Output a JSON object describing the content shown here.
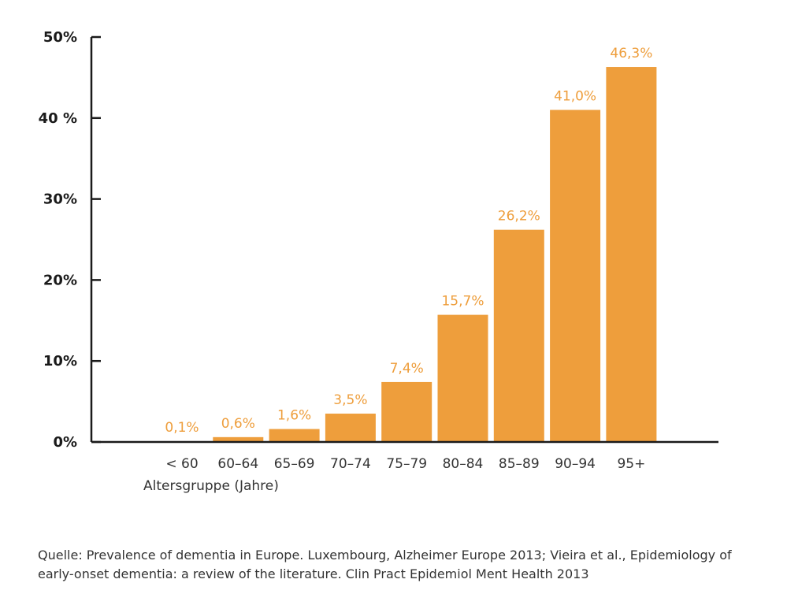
{
  "chart_data": {
    "type": "bar",
    "categories": [
      "< 60",
      "60–64",
      "65–69",
      "70–74",
      "75–79",
      "80–84",
      "85–89",
      "90–94",
      "95+"
    ],
    "values": [
      0.1,
      0.6,
      1.6,
      3.5,
      7.4,
      15.7,
      26.2,
      41.0,
      46.3
    ],
    "value_labels": [
      "0,1%",
      "0,6%",
      "1,6%",
      "3,5%",
      "7,4%",
      "15,7%",
      "26,2%",
      "41,0%",
      "46,3%"
    ],
    "xlabel": "Altersgruppe (Jahre)",
    "ylabel": "",
    "ylim": [
      0,
      50
    ],
    "yticks": [
      0,
      10,
      20,
      30,
      40,
      50
    ],
    "ytick_labels": [
      "0%",
      "10%",
      "20%",
      "30%",
      "40 %",
      "50%"
    ],
    "grid": false,
    "bar_color": "#ee9e3c",
    "label_color": "#ee9e3c",
    "axis_color": "#1a1a1a"
  },
  "source_text": "Quelle: Prevalence of dementia in Europe. Luxembourg, Alzheimer Europe 2013; Vieira et al., Epidemiology of early-onset dementia: a review of the literature. Clin Pract Epidemiol Ment Health 2013"
}
